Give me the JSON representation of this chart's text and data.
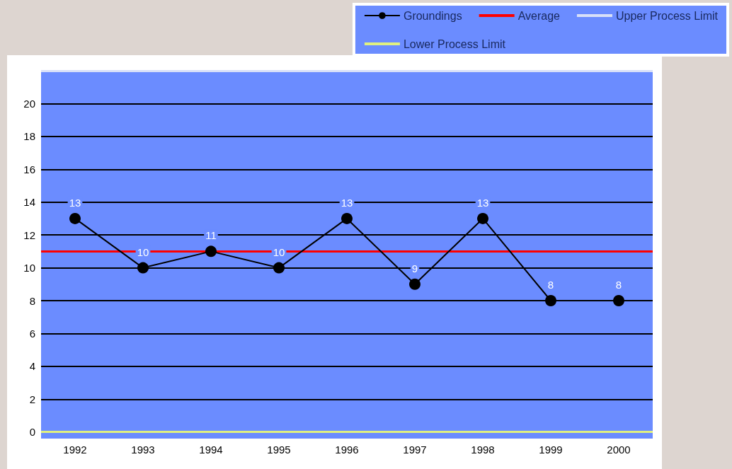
{
  "chart_data": {
    "type": "line",
    "categories": [
      "1992",
      "1993",
      "1994",
      "1995",
      "1996",
      "1997",
      "1998",
      "1999",
      "2000"
    ],
    "series": [
      {
        "name": "Groundings",
        "color": "#000000",
        "values": [
          13,
          10,
          11,
          10,
          13,
          9,
          13,
          8,
          8
        ]
      }
    ],
    "ref_lines": [
      {
        "axis": "y",
        "value": 11,
        "label": "Average",
        "color": "#ff0000"
      },
      {
        "axis": "y",
        "value": 22,
        "label": "Upper Process Limit",
        "color": "#d8e0f8"
      },
      {
        "axis": "y",
        "value": 0,
        "label": "Lower Process Limit",
        "color": "#e0f080"
      }
    ],
    "ylim": [
      -0.4,
      22
    ],
    "yticks": [
      0,
      2,
      4,
      6,
      8,
      10,
      12,
      14,
      16,
      18,
      20
    ],
    "grid": "y",
    "legend": "top right",
    "marker": "circle",
    "line_style": "solid",
    "data_labels": true
  }
}
